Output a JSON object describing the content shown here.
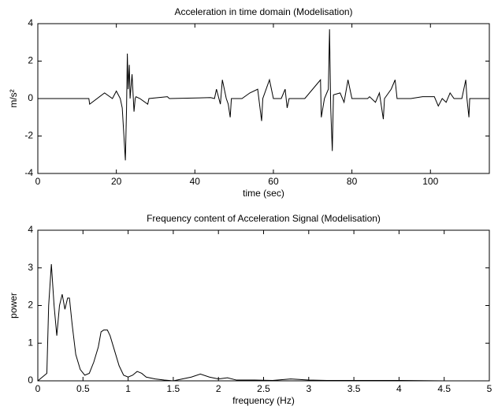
{
  "chart_data": [
    {
      "type": "line",
      "title": "Acceleration in time domain (Modelisation)",
      "xlabel": "time (sec)",
      "ylabel": "m/s²",
      "x": [
        0,
        13,
        13.2,
        17,
        19,
        20,
        21,
        21.5,
        22.3,
        22.6,
        22.8,
        23,
        23.3,
        23.5,
        24,
        24.5,
        24.8,
        25,
        26,
        28,
        28.3,
        33,
        33.5,
        44,
        45,
        45.5,
        46.5,
        47,
        48,
        48.5,
        49,
        49.3,
        52,
        54,
        56,
        57,
        57.3,
        59,
        60,
        62,
        63,
        63.5,
        64,
        68,
        72,
        72.2,
        73,
        74,
        74.3,
        74.6,
        75,
        75.3,
        77,
        78,
        79,
        80,
        84,
        84.5,
        86,
        87,
        88,
        88.3,
        90,
        91,
        91.5,
        95,
        98,
        101,
        102,
        103,
        104,
        105,
        106,
        108,
        109,
        109.3,
        109.8,
        110,
        115
      ],
      "series": [
        {
          "color": "#000000",
          "values": [
            0,
            0,
            -0.3,
            0.3,
            0,
            0.4,
            0,
            -0.5,
            -3.3,
            -0.5,
            2.4,
            0.5,
            1.8,
            0,
            1.3,
            -0.7,
            0,
            0.1,
            0,
            -0.3,
            0,
            0.1,
            0,
            0.05,
            0,
            0.5,
            -0.3,
            1,
            0,
            -0.3,
            -1,
            0,
            0,
            0.3,
            0.5,
            -1.2,
            0,
            1,
            0,
            0,
            0.5,
            -0.5,
            0,
            0,
            1,
            -1,
            0,
            0.5,
            3.7,
            -0.5,
            -2.8,
            0.2,
            0.3,
            -0.2,
            1,
            0,
            0,
            0.1,
            -0.2,
            0.3,
            -1.1,
            0,
            0.5,
            1,
            0,
            0,
            0.1,
            0.1,
            -0.4,
            0,
            -0.2,
            0.3,
            0,
            0,
            1,
            0,
            -1,
            0,
            0
          ]
        }
      ],
      "xlim": [
        0,
        115
      ],
      "xticks": [
        0,
        20,
        40,
        60,
        80,
        100
      ],
      "ylim": [
        -4,
        4
      ],
      "yticks": [
        -4,
        -2,
        0,
        2,
        4
      ],
      "grid": false
    },
    {
      "type": "line",
      "title": "Frequency content of Acceleration Signal (Modelisation)",
      "xlabel": "frequency (Hz)",
      "ylabel": "power",
      "x": [
        0,
        0.05,
        0.1,
        0.12,
        0.15,
        0.18,
        0.21,
        0.24,
        0.27,
        0.3,
        0.33,
        0.35,
        0.38,
        0.42,
        0.47,
        0.52,
        0.57,
        0.62,
        0.67,
        0.7,
        0.73,
        0.77,
        0.8,
        0.85,
        0.9,
        0.95,
        1,
        1.05,
        1.1,
        1.15,
        1.2,
        1.3,
        1.4,
        1.5,
        1.6,
        1.7,
        1.8,
        1.9,
        2,
        2.1,
        2.2,
        2.4,
        2.6,
        2.8,
        3,
        3.2,
        3.5,
        4,
        4.5,
        5
      ],
      "series": [
        {
          "color": "#000000",
          "values": [
            0,
            0.1,
            0.2,
            2,
            3.1,
            2,
            1.2,
            2,
            2.3,
            1.9,
            2.2,
            2.2,
            1.5,
            0.7,
            0.3,
            0.15,
            0.2,
            0.5,
            0.9,
            1.3,
            1.35,
            1.35,
            1.2,
            0.8,
            0.4,
            0.15,
            0.1,
            0.15,
            0.25,
            0.2,
            0.1,
            0.05,
            0.02,
            0,
            0.05,
            0.1,
            0.18,
            0.1,
            0.05,
            0.08,
            0.02,
            0.02,
            0.01,
            0.05,
            0.02,
            0.01,
            0.01,
            0.01,
            0,
            0
          ]
        }
      ],
      "xlim": [
        0,
        5
      ],
      "xticks": [
        0,
        0.5,
        1,
        1.5,
        2,
        2.5,
        3,
        3.5,
        4,
        4.5,
        5
      ],
      "ylim": [
        0,
        4
      ],
      "yticks": [
        0,
        1,
        2,
        3,
        4
      ],
      "grid": false
    }
  ]
}
